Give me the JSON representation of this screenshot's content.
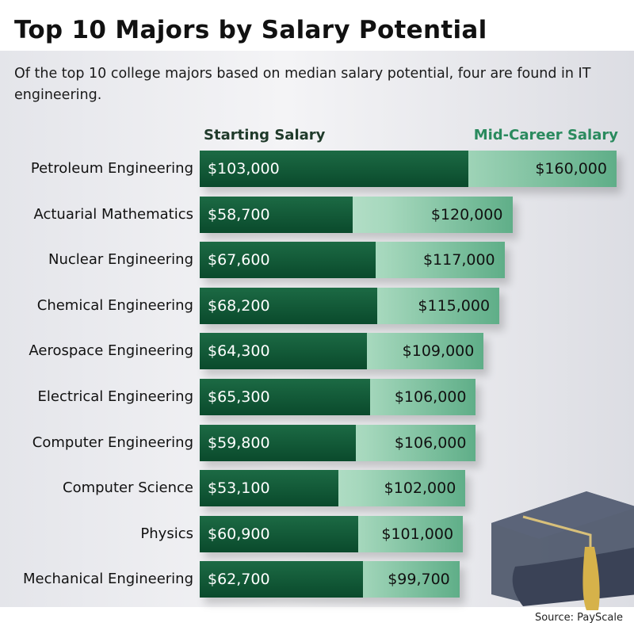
{
  "chart_data": {
    "type": "bar",
    "title": "Top 10 Majors by Salary Potential",
    "subtitle": "Of the top 10 college majors based on median salary potential, four are found in IT engineering.",
    "categories": [
      "Petroleum Engineering",
      "Actuarial Mathematics",
      "Nuclear Engineering",
      "Chemical Engineering",
      "Aerospace Engineering",
      "Electrical Engineering",
      "Computer Engineering",
      "Computer Science",
      "Physics",
      "Mechanical Engineering"
    ],
    "series": [
      {
        "name": "Starting Salary",
        "values": [
          103000,
          58700,
          67600,
          68200,
          64300,
          65300,
          59800,
          53100,
          60900,
          62700
        ],
        "labels": [
          "$103,000",
          "$58,700",
          "$67,600",
          "$68,200",
          "$64,300",
          "$65,300",
          "$59,800",
          "$53,100",
          "$60,900",
          "$62,700"
        ],
        "color": "#0f5535"
      },
      {
        "name": "Mid-Career Salary",
        "values": [
          160000,
          120000,
          117000,
          115000,
          109000,
          106000,
          106000,
          102000,
          101000,
          99700
        ],
        "labels": [
          "$160,000",
          "$120,000",
          "$117,000",
          "$115,000",
          "$109,000",
          "$106,000",
          "$106,000",
          "$102,000",
          "$101,000",
          "$99,700"
        ],
        "color": "#8ccfab"
      }
    ],
    "orientation": "horizontal",
    "grid": false,
    "source": "Source: PayScale"
  }
}
